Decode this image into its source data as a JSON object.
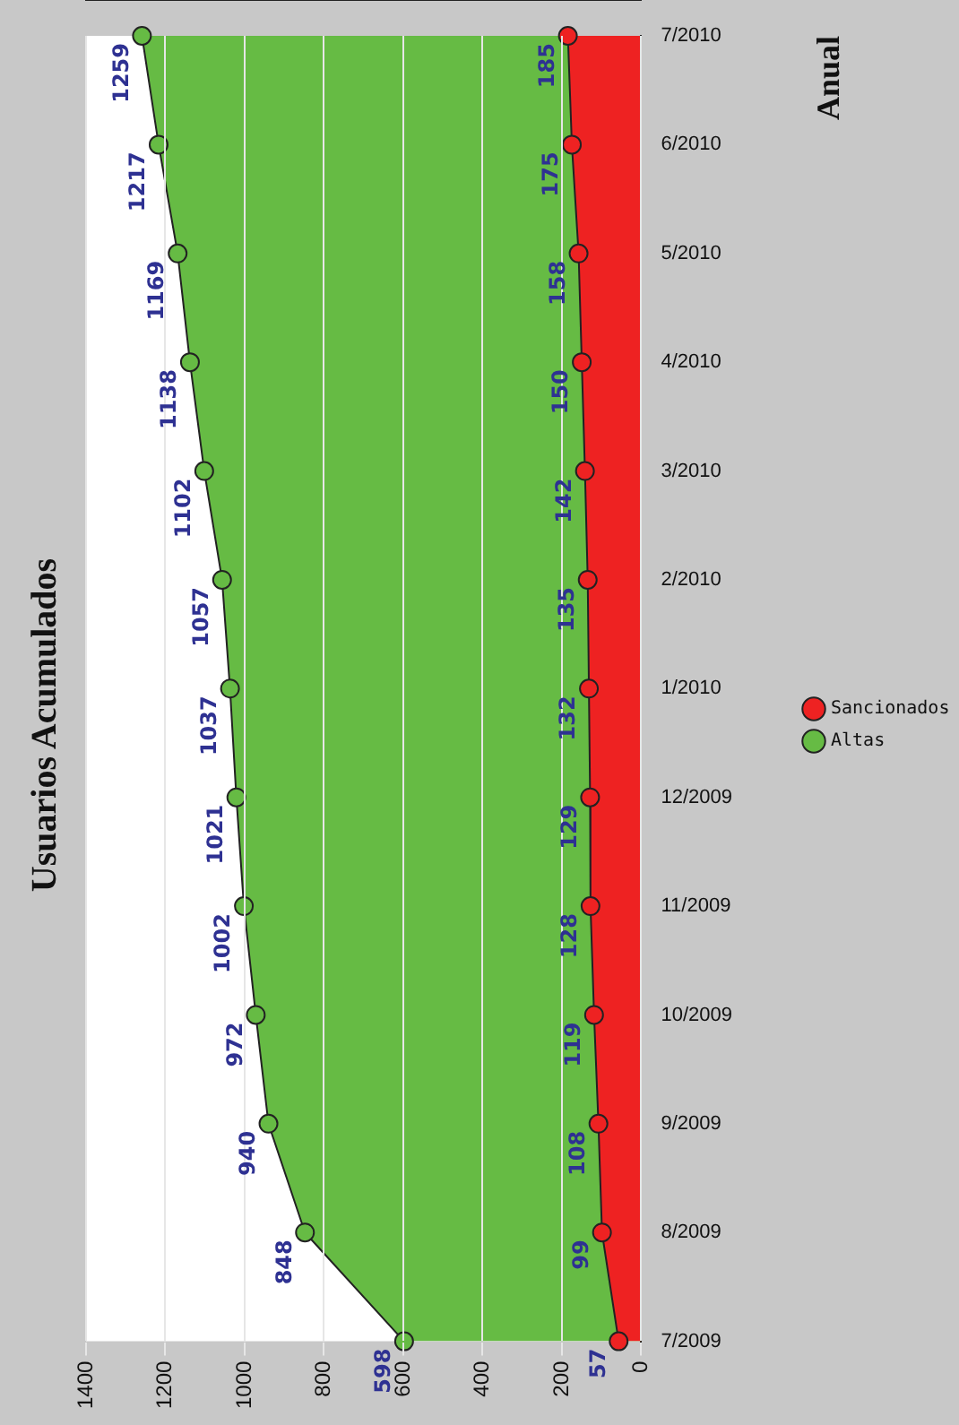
{
  "chart_data": {
    "type": "area",
    "title": "Usuarios Acumulados",
    "ylabel": "Anual",
    "orientation": "horizontal",
    "categories": [
      "7/2010",
      "6/2010",
      "5/2010",
      "4/2010",
      "3/2010",
      "2/2010",
      "1/2010",
      "12/2009",
      "11/2009",
      "10/2009",
      "9/2009",
      "8/2009",
      "7/2009"
    ],
    "series": [
      {
        "name": "Altas",
        "color": "#66bb44",
        "values": [
          1259,
          1217,
          1169,
          1138,
          1102,
          1057,
          1037,
          1021,
          1002,
          972,
          940,
          848,
          598
        ]
      },
      {
        "name": "Sancionados",
        "color": "#ee2222",
        "values": [
          185,
          175,
          158,
          150,
          142,
          135,
          132,
          129,
          128,
          119,
          108,
          99,
          57
        ]
      }
    ],
    "xlim": [
      1400,
      0
    ],
    "xticks": [
      1400,
      1200,
      1000,
      800,
      600,
      400,
      200,
      0
    ],
    "grid": "x",
    "legend": "right",
    "marker": "circle",
    "data_labels": true
  }
}
